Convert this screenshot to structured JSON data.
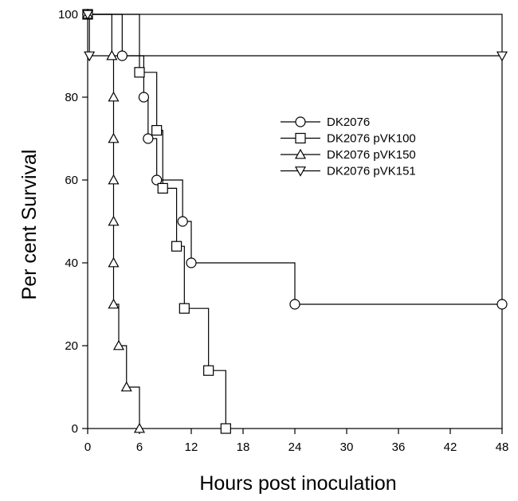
{
  "chart_data": {
    "type": "line",
    "title": "",
    "xlabel": "Hours post inoculation",
    "ylabel": "Per cent Survival",
    "xlim": [
      0,
      48
    ],
    "ylim": [
      0,
      100
    ],
    "x_ticks": [
      0,
      6,
      12,
      18,
      24,
      30,
      36,
      42,
      48
    ],
    "y_ticks": [
      0,
      20,
      40,
      60,
      80,
      100
    ],
    "step": true,
    "grid": false,
    "legend_position": "upper-right",
    "series": [
      {
        "name": "DK2076",
        "marker": "circle",
        "x": [
          0,
          4,
          6.5,
          7,
          8,
          11,
          12,
          24,
          48
        ],
        "y": [
          100,
          90,
          80,
          70,
          60,
          50,
          40,
          30,
          30
        ]
      },
      {
        "name": "DK2076 pVK100",
        "marker": "square",
        "x": [
          0,
          6,
          8,
          8.7,
          10.3,
          11.2,
          14,
          16
        ],
        "y": [
          100,
          86,
          72,
          58,
          44,
          29,
          14,
          0
        ]
      },
      {
        "name": "DK2076 pVK150",
        "marker": "triangle-up",
        "x": [
          0,
          2.8,
          3,
          3,
          3,
          3,
          3,
          3,
          3.6,
          4.5,
          6
        ],
        "y": [
          100,
          90,
          80,
          70,
          60,
          50,
          40,
          30,
          20,
          10,
          0
        ]
      },
      {
        "name": "DK2076 pVK151",
        "marker": "triangle-down",
        "x": [
          0,
          0.2,
          48
        ],
        "y": [
          100,
          90,
          90
        ]
      }
    ]
  }
}
